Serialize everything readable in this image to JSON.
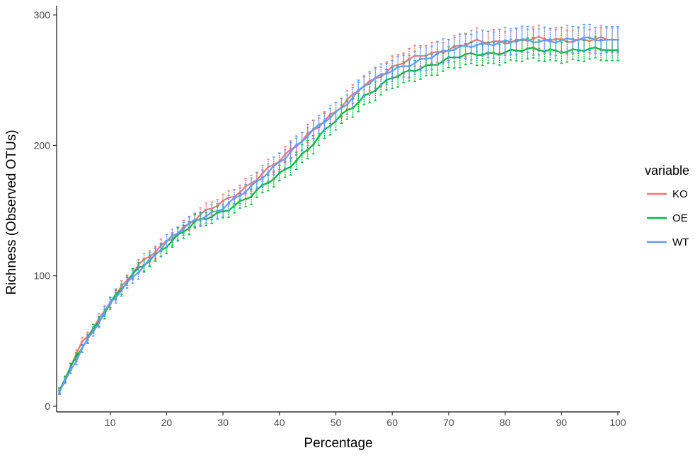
{
  "chart_data": {
    "type": "line",
    "title": "",
    "xlabel": "Percentage",
    "ylabel": "Richness (Observed OTUs)",
    "xlim": [
      0,
      100
    ],
    "ylim": [
      -3,
      305
    ],
    "xticks": [
      10,
      20,
      30,
      40,
      50,
      60,
      70,
      80,
      90,
      100
    ],
    "yticks": [
      0,
      100,
      200,
      300
    ],
    "grid": false,
    "error_bars": true,
    "legend": {
      "title": "variable",
      "position": "right",
      "entries": [
        "KO",
        "OE",
        "WT"
      ]
    },
    "series": [
      {
        "name": "KO",
        "color": "#F8766D",
        "x": [
          1,
          5,
          10,
          15,
          20,
          25,
          30,
          35,
          40,
          45,
          50,
          55,
          60,
          65,
          70,
          75,
          80,
          85,
          90,
          95,
          100
        ],
        "values": [
          12,
          48,
          80,
          107,
          127,
          143,
          157,
          171,
          188,
          209,
          225,
          247,
          259,
          269,
          274,
          279,
          280,
          281,
          281,
          281,
          281
        ],
        "error": [
          2,
          3,
          4,
          4,
          5,
          5,
          5,
          6,
          6,
          7,
          7,
          7,
          8,
          8,
          8,
          9,
          9,
          9,
          9,
          9,
          9
        ]
      },
      {
        "name": "OE",
        "color": "#00BA38",
        "x": [
          1,
          5,
          10,
          15,
          20,
          25,
          30,
          35,
          40,
          45,
          50,
          55,
          60,
          65,
          70,
          75,
          80,
          85,
          90,
          95,
          100
        ],
        "values": [
          12,
          46,
          79,
          105,
          124,
          140,
          150,
          161,
          178,
          197,
          219,
          238,
          251,
          260,
          266,
          270,
          272,
          273,
          273,
          273,
          273
        ],
        "error": [
          2,
          3,
          4,
          4,
          5,
          5,
          5,
          6,
          6,
          7,
          7,
          7,
          8,
          8,
          8,
          8,
          8,
          8,
          8,
          8,
          8
        ]
      },
      {
        "name": "WT",
        "color": "#619CFF",
        "x": [
          1,
          5,
          10,
          15,
          20,
          25,
          30,
          35,
          40,
          45,
          50,
          55,
          60,
          65,
          70,
          75,
          80,
          85,
          90,
          95,
          100
        ],
        "values": [
          11,
          45,
          78,
          104,
          126,
          142,
          153,
          167,
          188,
          207,
          225,
          246,
          257,
          266,
          272,
          278,
          279,
          280,
          281,
          281,
          281
        ],
        "error": [
          2,
          3,
          4,
          5,
          5,
          5,
          6,
          6,
          7,
          7,
          7,
          8,
          8,
          9,
          9,
          10,
          10,
          10,
          10,
          10,
          10
        ]
      }
    ]
  }
}
